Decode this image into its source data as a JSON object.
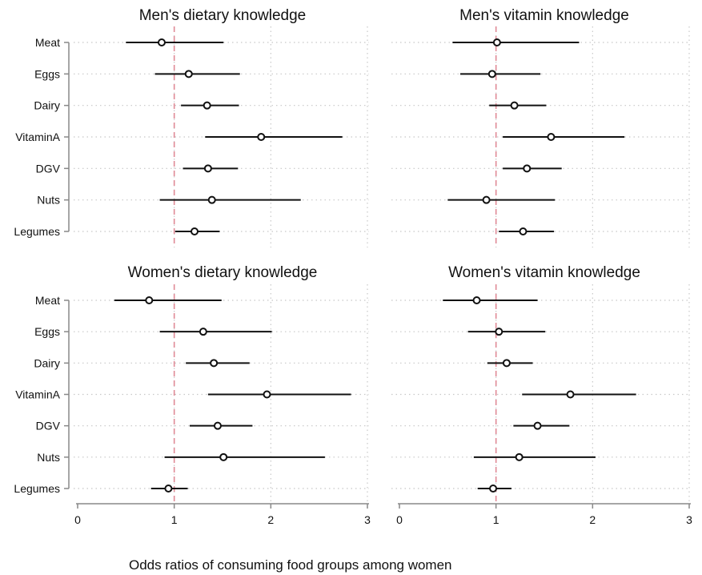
{
  "caption": "Odds ratios of consuming food groups among women",
  "chart_data": [
    {
      "type": "forest",
      "title": "Men's dietary knowledge",
      "xlabel": "",
      "ylabel": "",
      "xlim": [
        0,
        3
      ],
      "xticks": [
        0,
        1,
        2,
        3
      ],
      "reference_line": 1,
      "categories": [
        "Meat",
        "Eggs",
        "Dairy",
        "VitaminA",
        "DGV",
        "Nuts",
        "Legumes"
      ],
      "estimate": [
        0.87,
        1.15,
        1.34,
        1.9,
        1.35,
        1.39,
        1.21
      ],
      "lower": [
        0.5,
        0.8,
        1.07,
        1.32,
        1.09,
        0.85,
        1.01
      ],
      "upper": [
        1.51,
        1.68,
        1.67,
        2.74,
        1.66,
        2.31,
        1.47
      ],
      "show_x_axis": false
    },
    {
      "type": "forest",
      "title": "Men's vitamin knowledge",
      "xlabel": "",
      "ylabel": "",
      "xlim": [
        0,
        3
      ],
      "xticks": [
        0,
        1,
        2,
        3
      ],
      "reference_line": 1,
      "categories": [
        "Meat",
        "Eggs",
        "Dairy",
        "VitaminA",
        "DGV",
        "Nuts",
        "Legumes"
      ],
      "estimate": [
        1.01,
        0.96,
        1.19,
        1.57,
        1.32,
        0.9,
        1.28
      ],
      "lower": [
        0.55,
        0.63,
        0.93,
        1.07,
        1.07,
        0.5,
        1.03
      ],
      "upper": [
        1.86,
        1.46,
        1.52,
        2.33,
        1.68,
        1.61,
        1.6
      ],
      "show_x_axis": false
    },
    {
      "type": "forest",
      "title": "Women's dietary knowledge",
      "xlabel": "",
      "ylabel": "",
      "xlim": [
        0,
        3
      ],
      "xticks": [
        0,
        1,
        2,
        3
      ],
      "reference_line": 1,
      "categories": [
        "Meat",
        "Eggs",
        "Dairy",
        "VitaminA",
        "DGV",
        "Nuts",
        "Legumes"
      ],
      "estimate": [
        0.74,
        1.3,
        1.41,
        1.96,
        1.45,
        1.51,
        0.94
      ],
      "lower": [
        0.38,
        0.85,
        1.12,
        1.35,
        1.16,
        0.9,
        0.76
      ],
      "upper": [
        1.49,
        2.01,
        1.78,
        2.83,
        1.81,
        2.56,
        1.14
      ],
      "show_x_axis": true
    },
    {
      "type": "forest",
      "title": "Women's vitamin knowledge",
      "xlabel": "",
      "ylabel": "",
      "xlim": [
        0,
        3
      ],
      "xticks": [
        0,
        1,
        2,
        3
      ],
      "reference_line": 1,
      "categories": [
        "Meat",
        "Eggs",
        "Dairy",
        "VitaminA",
        "DGV",
        "Nuts",
        "Legumes"
      ],
      "estimate": [
        0.8,
        1.03,
        1.11,
        1.77,
        1.43,
        1.24,
        0.97
      ],
      "lower": [
        0.45,
        0.71,
        0.91,
        1.27,
        1.18,
        0.77,
        0.81
      ],
      "upper": [
        1.43,
        1.51,
        1.38,
        2.45,
        1.76,
        2.03,
        1.16
      ],
      "show_x_axis": true
    }
  ]
}
